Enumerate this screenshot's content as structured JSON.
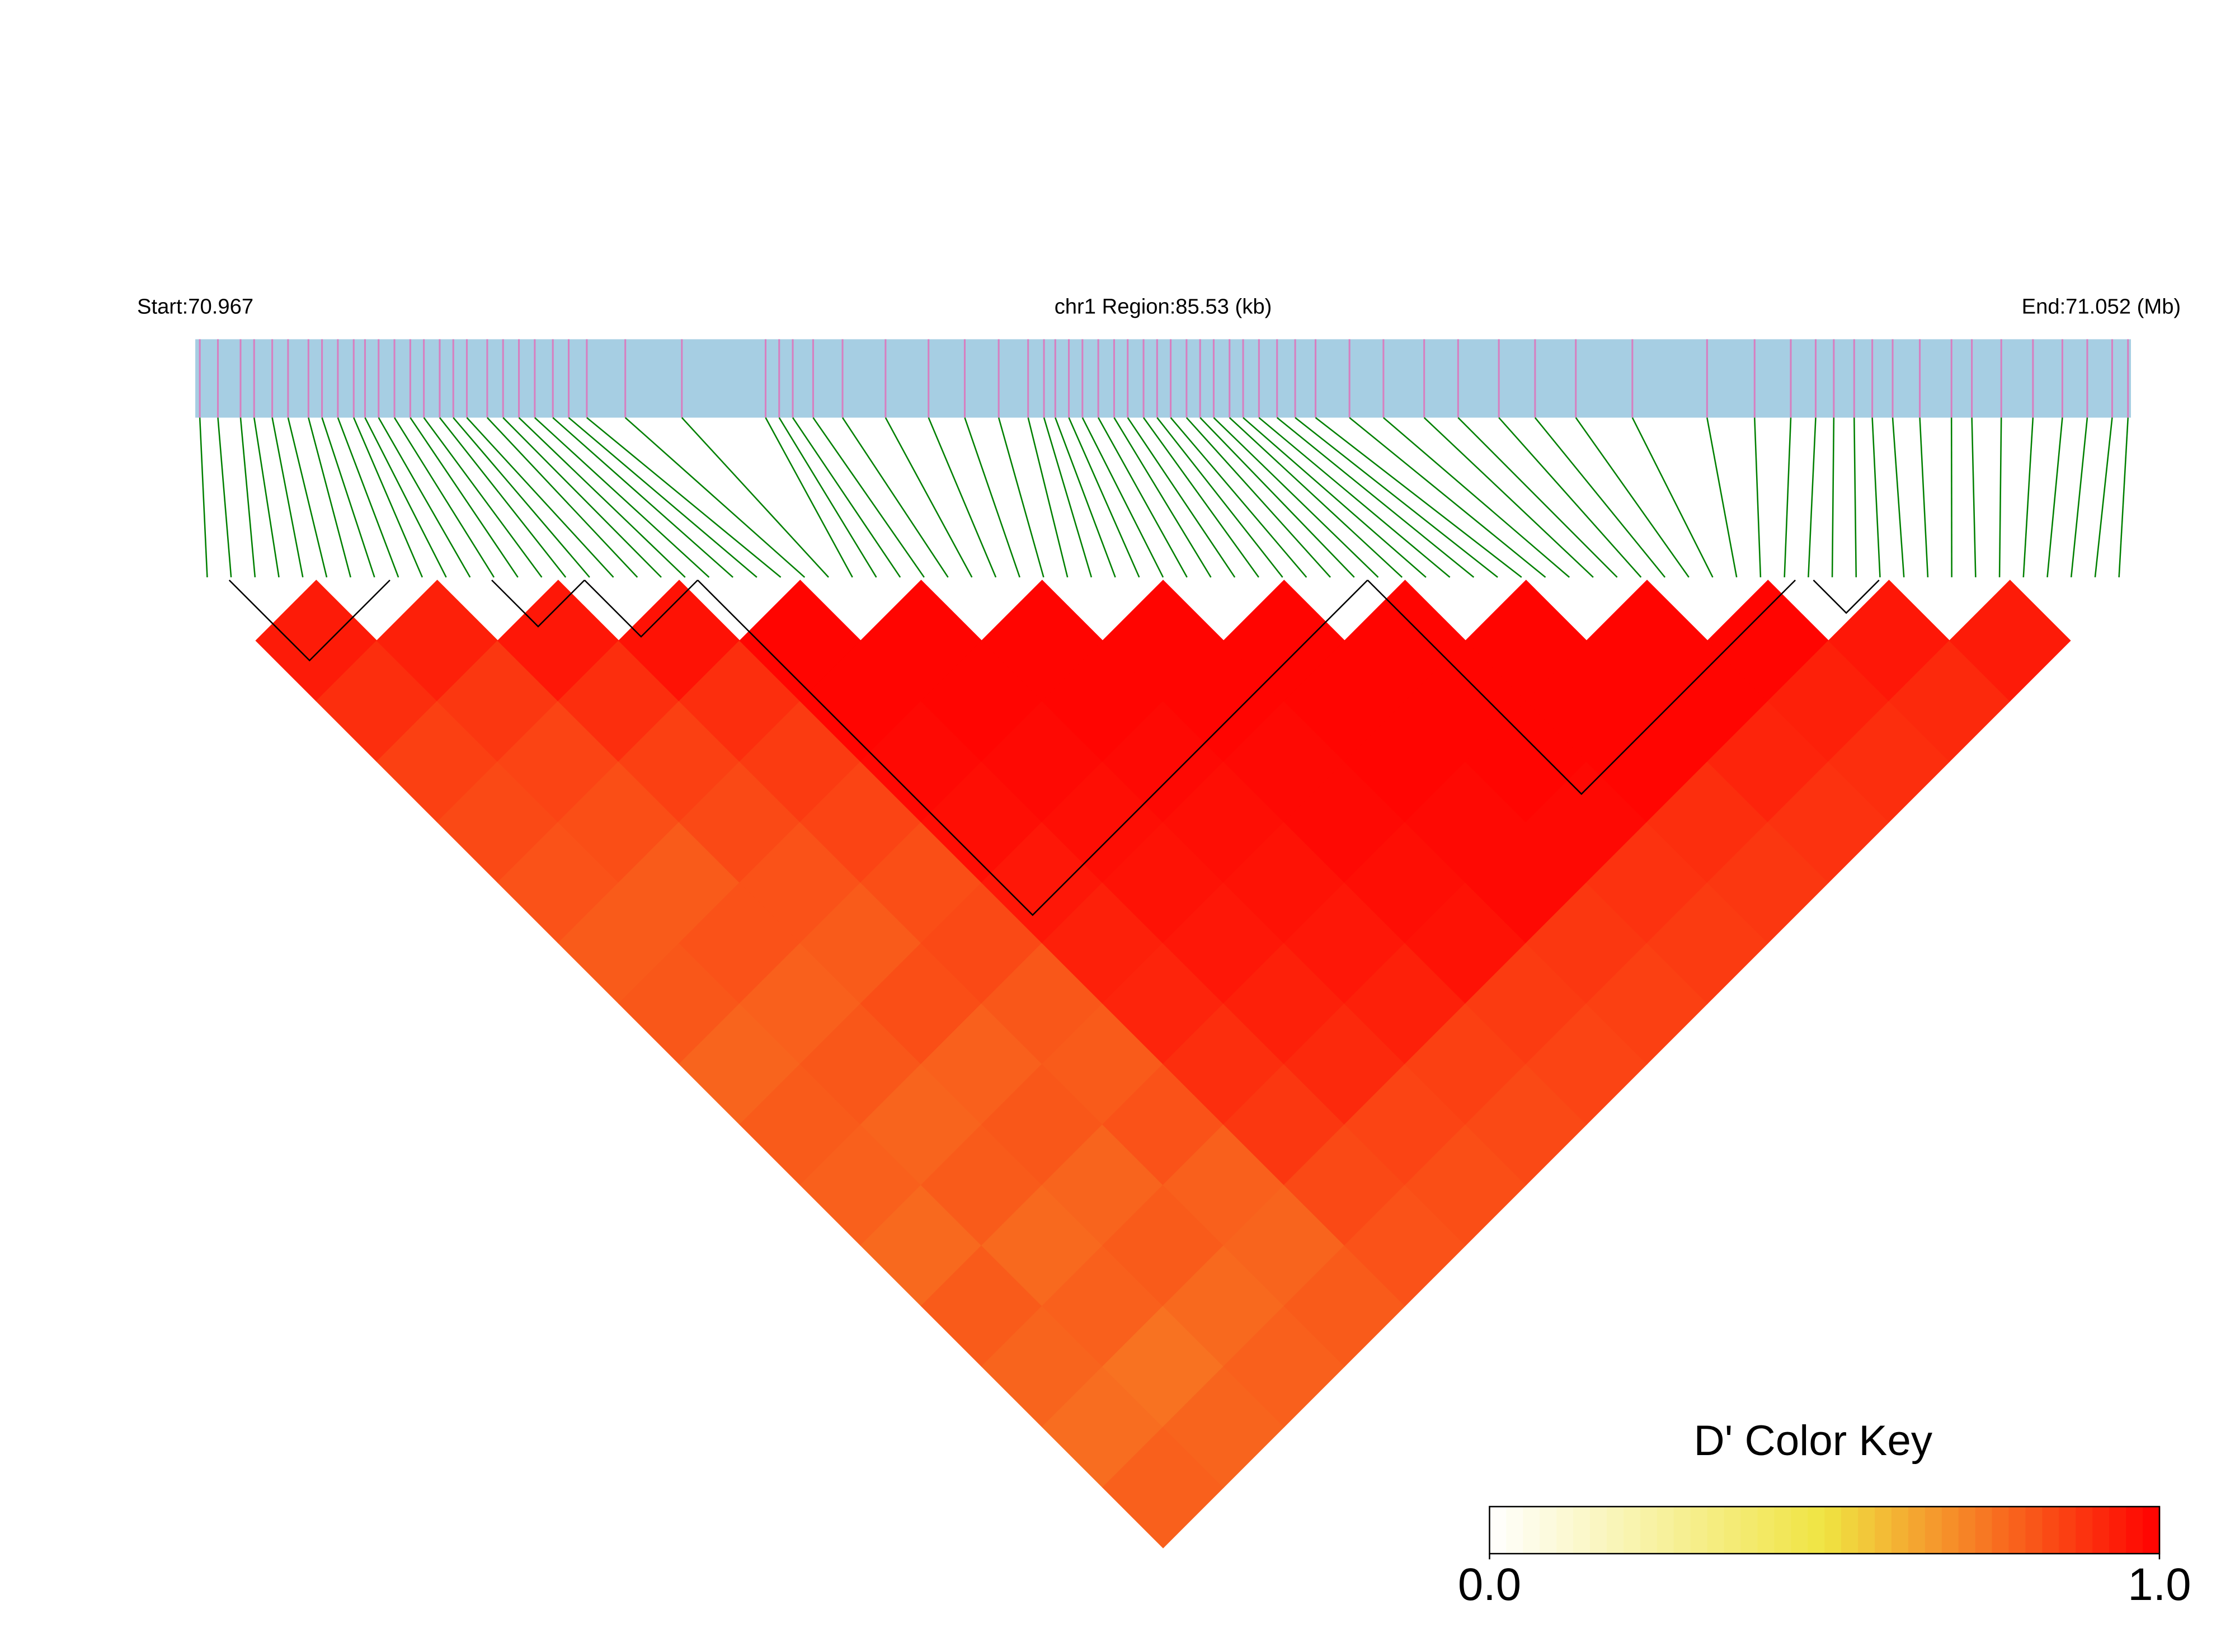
{
  "chart_data": {
    "type": "ld-heatmap",
    "start_label": "Start:70.967",
    "region_label": "chr1 Region:85.53 (kb)",
    "end_label": "End:71.052 (Mb)",
    "xlim": [
      0,
      85.53
    ],
    "bar_color": "#a6cee3",
    "tick_color": "#d77fc0",
    "line_color": "#008000",
    "snp_positions": [
      0.2,
      1.0,
      2.0,
      2.6,
      3.4,
      4.1,
      5.0,
      5.6,
      6.3,
      7.0,
      7.5,
      8.1,
      8.8,
      9.5,
      10.1,
      10.8,
      11.4,
      12.0,
      12.9,
      13.6,
      14.3,
      15.0,
      15.8,
      16.5,
      17.3,
      19.0,
      21.5,
      25.2,
      25.8,
      26.4,
      27.3,
      28.6,
      30.5,
      32.4,
      34.0,
      35.5,
      36.8,
      37.5,
      38.0,
      38.6,
      39.2,
      39.9,
      40.6,
      41.2,
      41.9,
      42.5,
      43.1,
      43.8,
      44.4,
      45.0,
      45.7,
      46.3,
      47.0,
      47.8,
      48.6,
      49.5,
      51.0,
      52.5,
      54.3,
      55.8,
      57.6,
      59.2,
      61.0,
      63.5,
      66.8,
      68.9,
      70.5,
      71.6,
      72.4,
      73.3,
      74.1,
      75.0,
      76.2,
      77.6,
      78.5,
      79.8,
      81.2,
      82.5,
      83.6,
      84.7,
      85.4
    ],
    "dprime": [
      [
        0.94,
        0.9,
        0.86,
        0.84,
        0.82,
        0.8,
        0.81,
        0.78,
        0.8,
        0.79,
        0.77,
        0.8,
        0.78,
        0.76,
        0.79
      ],
      [
        0.93,
        0.88,
        0.85,
        0.83,
        0.8,
        0.82,
        0.79,
        0.81,
        0.78,
        0.8,
        0.77,
        0.79,
        0.75,
        0.78
      ],
      [
        0.95,
        0.9,
        0.86,
        0.84,
        0.82,
        0.8,
        0.83,
        0.79,
        0.81,
        0.78,
        0.8,
        0.77,
        0.79
      ],
      [
        0.96,
        0.9,
        0.87,
        0.85,
        0.83,
        0.84,
        0.81,
        0.8,
        0.82,
        0.79,
        0.78,
        0.8
      ],
      [
        0.99,
        0.99,
        0.98,
        0.97,
        0.95,
        0.93,
        0.92,
        0.9,
        0.88,
        0.84,
        0.82
      ],
      [
        0.99,
        0.99,
        0.98,
        0.97,
        0.96,
        0.95,
        0.93,
        0.91,
        0.85,
        0.83
      ],
      [
        0.99,
        0.99,
        0.98,
        0.97,
        0.96,
        0.95,
        0.93,
        0.86,
        0.84
      ],
      [
        0.99,
        0.99,
        0.98,
        0.98,
        0.97,
        0.96,
        0.87,
        0.85
      ],
      [
        0.99,
        0.99,
        0.99,
        0.98,
        0.98,
        0.88,
        0.86
      ],
      [
        0.99,
        0.99,
        0.99,
        0.98,
        0.89,
        0.87
      ],
      [
        0.99,
        0.99,
        0.99,
        0.9,
        0.88
      ],
      [
        0.99,
        0.99,
        0.92,
        0.89
      ],
      [
        0.99,
        0.93,
        0.9
      ],
      [
        0.95,
        0.91
      ],
      [
        0.94
      ]
    ],
    "blocks": [
      [
        1.5,
        8.6
      ],
      [
        13.1,
        17.2
      ],
      [
        17.2,
        22.2
      ],
      [
        22.2,
        51.8
      ],
      [
        51.8,
        70.7
      ],
      [
        71.5,
        74.4
      ]
    ],
    "color_key": {
      "title": "D' Color Key",
      "lim": [
        0,
        1
      ],
      "colors": [
        "#ffffff",
        "#f0e442",
        "#ff0000"
      ],
      "ticks": [
        {
          "value": 0,
          "label": "0.0"
        },
        {
          "value": 1,
          "label": "1.0"
        }
      ]
    }
  }
}
